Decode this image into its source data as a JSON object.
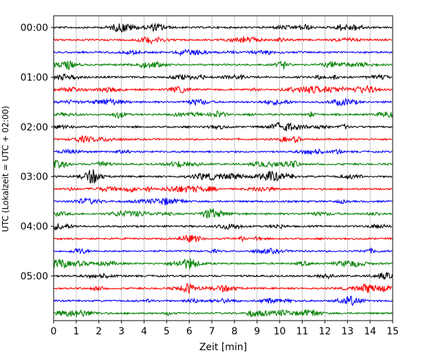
{
  "chart_data": {
    "type": "line",
    "title": "",
    "xlabel": "Zeit  [min]",
    "ylabel": "UTC (Lokalzeit = UTC + 02:00)",
    "xlim": [
      0,
      15
    ],
    "xticks": [
      0,
      1,
      2,
      3,
      4,
      5,
      6,
      7,
      8,
      9,
      10,
      11,
      12,
      13,
      14,
      15
    ],
    "xtick_labels": [
      "0",
      "1",
      "2",
      "3",
      "4",
      "5",
      "6",
      "7",
      "8",
      "9",
      "10",
      "11",
      "12",
      "13",
      "14",
      "15"
    ],
    "yticks": [
      0,
      60,
      120,
      180,
      240,
      300
    ],
    "ytick_labels": [
      "00:00",
      "01:00",
      "02:00",
      "03:00",
      "04:00",
      "05:00"
    ],
    "row_interval_min": 15,
    "row_count": 24,
    "row_colors": [
      "#000000",
      "#ff0000",
      "#0000ff",
      "#008000"
    ],
    "grid": "vertical-dotted"
  }
}
